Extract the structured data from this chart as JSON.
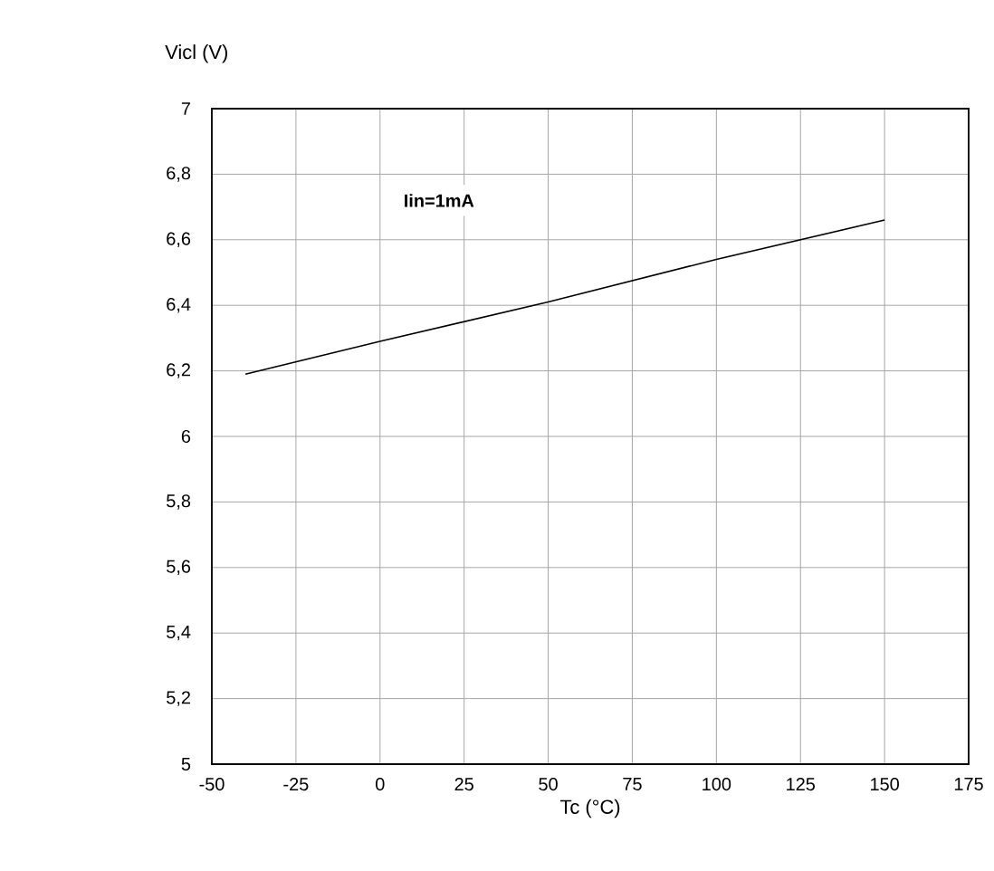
{
  "chart_data": {
    "type": "line",
    "xlabel": "Tc (°C)",
    "ylabel": "Vicl (V)",
    "x": [
      -40,
      0,
      50,
      100,
      150
    ],
    "series": [
      {
        "color": "#000000",
        "values": [
          6.19,
          6.29,
          6.41,
          6.54,
          6.66
        ]
      }
    ],
    "xlim": [
      -50,
      175
    ],
    "xticks": [
      -50,
      -25,
      0,
      25,
      50,
      75,
      100,
      125,
      150,
      175
    ],
    "ylim": [
      5,
      7
    ],
    "yticks": [
      5,
      {
        "value": 5.2,
        "label": "5,2"
      },
      {
        "value": 5.4,
        "label": "5,4"
      },
      {
        "value": 5.6,
        "label": "5,6"
      },
      {
        "value": 5.8,
        "label": "5,8"
      },
      6,
      {
        "value": 6.2,
        "label": "6,2"
      },
      {
        "value": 6.4,
        "label": "6,4"
      },
      {
        "value": 6.6,
        "label": "6,6"
      },
      {
        "value": 6.8,
        "label": "6,8"
      },
      7
    ],
    "annotations": [
      "**Iin=1mA**"
    ],
    "grid": true,
    "marker": "none",
    "line_style": "solid"
  }
}
